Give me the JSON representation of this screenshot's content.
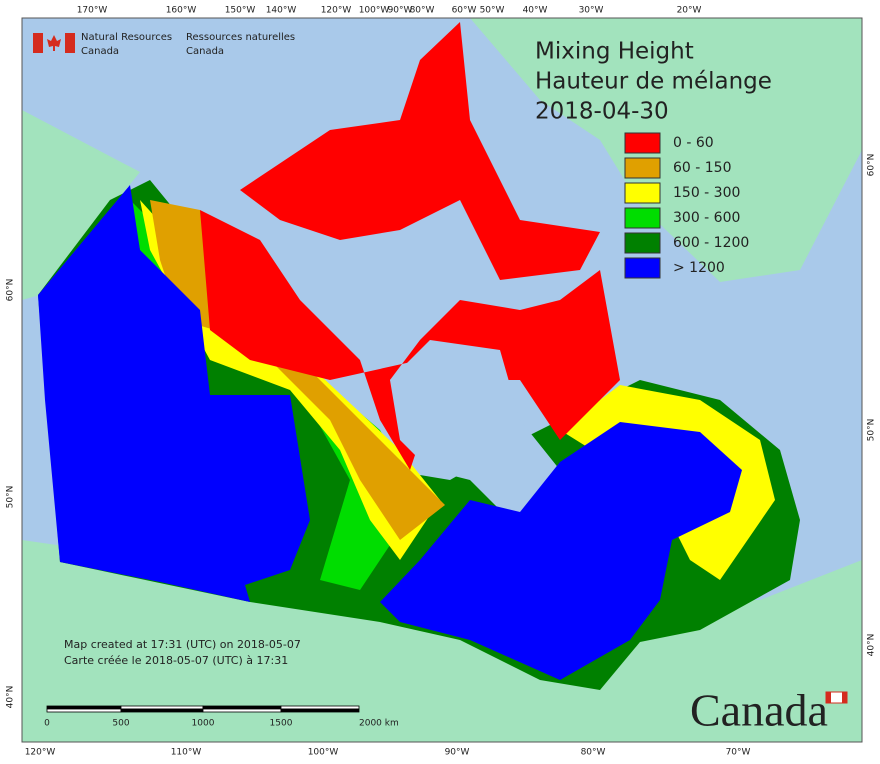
{
  "header": {
    "logo": {
      "en": [
        "Natural Resources",
        "Canada"
      ],
      "fr": [
        "Ressources naturelles",
        "Canada"
      ]
    }
  },
  "title": {
    "lines": [
      "Mixing Height",
      "Hauteur de mélange",
      "2018-04-30"
    ]
  },
  "legend": {
    "items": [
      {
        "label": "0 - 60",
        "color": "#ff0000"
      },
      {
        "label": "60 - 150",
        "color": "#e0a000"
      },
      {
        "label": "150 - 300",
        "color": "#ffff00"
      },
      {
        "label": "300 - 600",
        "color": "#00dd00"
      },
      {
        "label": "600 - 1200",
        "color": "#008000"
      },
      {
        "label": "> 1200",
        "color": "#0000ff"
      }
    ]
  },
  "graticule": {
    "top": [
      "170°W",
      "160°W",
      "150°W",
      "140°W",
      "120°W",
      "100°W",
      "90°W",
      "80°W",
      "60°W",
      "50°W",
      "40°W",
      "30°W",
      "20°W"
    ],
    "bottom": [
      "120°W",
      "110°W",
      "100°W",
      "90°W",
      "80°W",
      "70°W"
    ],
    "left": [
      "60°N",
      "50°N",
      "40°N"
    ],
    "right": [
      "60°N",
      "50°N",
      "40°N"
    ]
  },
  "footer": {
    "lines": [
      "Map created at 17:31 (UTC) on 2018-05-07",
      "Carte créée le 2018-05-07 (UTC) à 17:31"
    ]
  },
  "scale_bar": {
    "labels": [
      "0",
      "500",
      "1000",
      "1500",
      "2000 km"
    ]
  },
  "wordmark": "Canada"
}
